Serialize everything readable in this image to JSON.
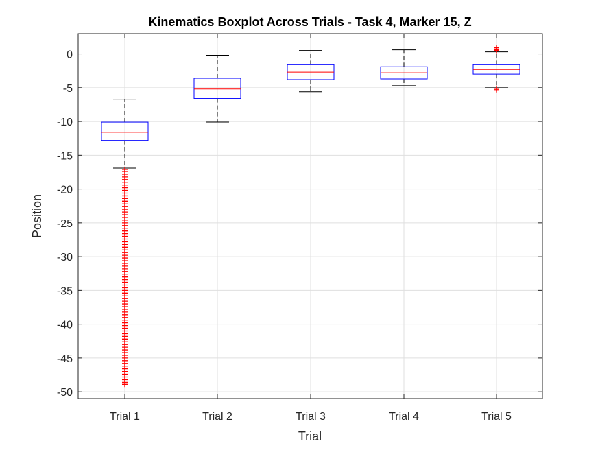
{
  "chart_data": {
    "type": "boxplot",
    "title": "Kinematics Boxplot Across Trials - Task 4, Marker 15, Z",
    "xlabel": "Trial",
    "ylabel": "Position",
    "ylim": [
      -51,
      3
    ],
    "yticks": [
      0,
      -5,
      -10,
      -15,
      -20,
      -25,
      -30,
      -35,
      -40,
      -45,
      -50
    ],
    "grid": true,
    "colors": {
      "box": "#0000ff",
      "median": "#ff0000",
      "whisker": "#000000",
      "outlier": "#ff0000"
    },
    "categories": [
      "Trial 1",
      "Trial 2",
      "Trial 3",
      "Trial 4",
      "Trial 5"
    ],
    "boxes": [
      {
        "label": "Trial 1",
        "whisker_low": -16.9,
        "q1": -12.8,
        "median": -11.6,
        "q3": -10.1,
        "whisker_high": -6.7,
        "outliers": [
          -17.1,
          -17.4,
          -17.8,
          -18.2,
          -18.6,
          -19.0,
          -19.4,
          -19.8,
          -20.2,
          -20.6,
          -21.0,
          -21.4,
          -21.8,
          -22.2,
          -22.6,
          -23.0,
          -23.4,
          -23.8,
          -24.2,
          -24.6,
          -25.0,
          -25.4,
          -25.8,
          -26.2,
          -26.6,
          -27.0,
          -27.4,
          -27.8,
          -28.2,
          -28.6,
          -29.0,
          -29.4,
          -29.8,
          -30.2,
          -30.6,
          -31.0,
          -31.4,
          -31.8,
          -32.2,
          -32.6,
          -33.0,
          -33.4,
          -33.8,
          -34.2,
          -34.6,
          -35.0,
          -35.4,
          -35.8,
          -36.2,
          -36.6,
          -37.0,
          -37.4,
          -37.8,
          -38.2,
          -38.6,
          -39.0,
          -39.4,
          -39.8,
          -40.2,
          -40.6,
          -41.0,
          -41.4,
          -41.8,
          -42.2,
          -42.6,
          -43.0,
          -43.4,
          -43.8,
          -44.2,
          -44.6,
          -45.0,
          -45.4,
          -45.8,
          -46.2,
          -46.6,
          -47.0,
          -47.4,
          -47.8,
          -48.2,
          -48.6,
          -48.9
        ]
      },
      {
        "label": "Trial 2",
        "whisker_low": -10.1,
        "q1": -6.6,
        "median": -5.2,
        "q3": -3.6,
        "whisker_high": -0.2,
        "outliers": []
      },
      {
        "label": "Trial 3",
        "whisker_low": -5.6,
        "q1": -3.8,
        "median": -2.7,
        "q3": -1.6,
        "whisker_high": 0.5,
        "outliers": []
      },
      {
        "label": "Trial 4",
        "whisker_low": -4.7,
        "q1": -3.7,
        "median": -2.8,
        "q3": -1.9,
        "whisker_high": 0.6,
        "outliers": []
      },
      {
        "label": "Trial 5",
        "whisker_low": -5.0,
        "q1": -3.0,
        "median": -2.3,
        "q3": -1.6,
        "whisker_high": 0.3,
        "outliers": [
          0.5,
          0.6,
          0.7,
          0.9,
          -5.1,
          -5.3
        ]
      }
    ]
  }
}
